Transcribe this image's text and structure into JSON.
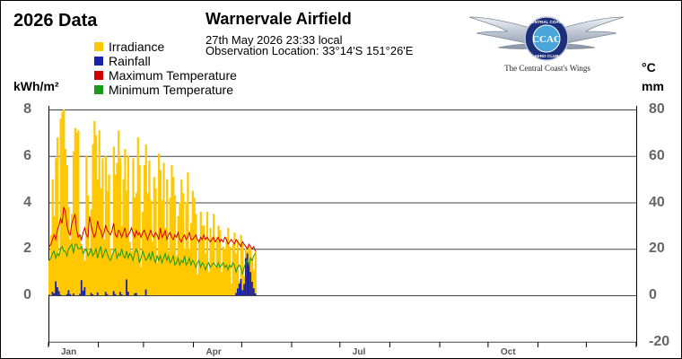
{
  "header": {
    "year_title": "2026 Data",
    "station": "Warnervale Airfield",
    "obs_time": "27th May 2026  23:33 local",
    "obs_location": "Observation Location: 33°14'S 151°26'E"
  },
  "logo": {
    "top_text": "CENTRAL COAST",
    "bottom_text": "AERO CLUB",
    "monogram": "CCAC",
    "caption": "The Central Coast's Wings"
  },
  "colors": {
    "irradiance": "#ffc800",
    "rainfall": "#1a22a8",
    "max_temp": "#d00000",
    "min_temp": "#1a9a1a",
    "grid": "#444444",
    "tick_text": "#666666"
  },
  "chart_data": {
    "type": "bar",
    "legend": [
      "Irradiance",
      "Rainfall",
      "Maximum Temperature",
      "Minimum Temperature"
    ],
    "left_axis": {
      "label": "kWh/m²",
      "range": [
        0,
        8
      ],
      "ticks": [
        "8",
        "6",
        "4",
        "2",
        "0"
      ]
    },
    "right_axis": {
      "label_temp": "°C",
      "label_rain": "mm",
      "range": [
        -20,
        80
      ],
      "ticks": [
        "80",
        "60",
        "40",
        "20",
        "0",
        "-20"
      ]
    },
    "x_axis": {
      "months": [
        "Jan",
        "Apr",
        "Jul",
        "Oct"
      ],
      "days_in_year": 365,
      "grid": true
    },
    "series": [
      {
        "name": "Irradiance",
        "unit": "kWh/m²",
        "values": [
          1.5,
          2.6,
          5.0,
          3.4,
          5.9,
          6.8,
          1.8,
          7.6,
          7.9,
          8.0,
          6.3,
          5.6,
          3.8,
          2.4,
          3.5,
          6.2,
          7.2,
          7.0,
          7.1,
          2.6,
          2.2,
          2.0,
          1.5,
          6.0,
          4.3,
          1.9,
          3.7,
          6.5,
          7.5,
          6.9,
          5.0,
          7.1,
          4.6,
          5.9,
          2.4,
          6.0,
          4.5,
          5.2,
          2.0,
          1.7,
          6.4,
          5.2,
          5.7,
          7.1,
          5.9,
          3.0,
          5.0,
          6.3,
          4.5,
          6.0,
          2.3,
          1.9,
          5.9,
          4.2,
          4.4,
          6.8,
          5.6,
          1.2,
          3.6,
          5.6,
          6.5,
          4.4,
          5.8,
          4.1,
          2.3,
          5.1,
          4.6,
          1.4,
          6.1,
          5.4,
          4.1,
          5.7,
          2.9,
          5.0,
          1.9,
          4.2,
          5.6,
          5.1,
          4.3,
          1.7,
          3.4,
          4.0,
          5.0,
          4.4,
          2.0,
          4.0,
          5.3,
          2.0,
          3.1,
          4.5,
          4.2,
          3.5,
          0.9,
          2.4,
          3.6,
          3.0,
          3.0,
          1.8,
          3.6,
          1.0,
          2.9,
          2.5,
          3.5,
          1.2,
          2.5,
          3.0,
          2.8,
          1.0,
          2.1,
          2.0,
          2.5,
          2.9,
          2.1,
          0.5,
          2.2,
          2.7,
          1.8,
          2.4,
          0.6,
          2.6,
          2.2,
          0.8,
          2.0,
          1.9,
          2.1,
          2.0,
          1.6,
          1.1,
          1.9
        ],
        "secondary": false
      },
      {
        "name": "Rainfall",
        "unit": "mm",
        "values": [
          0.2,
          0.0,
          1.5,
          0.8,
          6.0,
          3.5,
          1.8,
          0.3,
          0.0,
          0.0,
          0.0,
          0.5,
          2.2,
          0.5,
          0.0,
          0.8,
          0.0,
          0.0,
          0.0,
          0.6,
          6.5,
          2.0,
          3.5,
          0.0,
          0.0,
          0.0,
          1.0,
          0.4,
          0.0,
          0.0,
          1.2,
          0.0,
          0.0,
          0.0,
          0.0,
          1.5,
          0.5,
          0.0,
          0.0,
          0.0,
          1.8,
          0.5,
          0.0,
          0.0,
          1.5,
          0.4,
          0.0,
          0.0,
          6.8,
          1.5,
          0.0,
          0.0,
          0.0,
          0.8,
          1.0,
          0.0,
          0.0,
          0.0,
          0.0,
          0.0,
          2.5,
          0.0,
          0.0,
          0.0,
          0.0,
          0.0,
          0.0,
          0.0,
          0.0,
          0.0,
          0.0,
          0.0,
          0.0,
          0.0,
          0.0,
          0.0,
          0.0,
          0.0,
          0.0,
          0.0,
          0.0,
          0.0,
          0.0,
          0.0,
          0.0,
          0.0,
          0.0,
          0.0,
          0.0,
          0.0,
          0.0,
          0.0,
          0.0,
          0.0,
          0.0,
          0.0,
          0.0,
          0.0,
          0.0,
          0.0,
          0.0,
          0.0,
          0.0,
          0.0,
          0.0,
          0.0,
          0.0,
          0.0,
          0.0,
          0.0,
          0.0,
          0.0,
          0.0,
          0.0,
          0.0,
          0.0,
          1.0,
          3.0,
          5.0,
          7.0,
          2.2,
          4.8,
          16.0,
          18.0,
          14.0,
          10.0,
          5.8,
          3.0,
          0.8
        ],
        "secondary": true
      },
      {
        "name": "Maximum Temperature",
        "unit": "°C",
        "values": [
          21,
          22,
          24,
          26,
          24,
          28,
          30,
          33,
          31,
          38,
          36,
          30,
          27,
          26,
          31,
          33,
          35,
          28,
          25,
          26,
          24,
          27,
          29,
          26,
          25,
          34,
          30,
          27,
          25,
          27,
          32,
          29,
          28,
          25,
          27,
          30,
          28,
          27,
          26,
          28,
          31,
          26,
          25,
          28,
          27,
          25,
          27,
          29,
          25,
          26,
          27,
          29,
          27,
          25,
          28,
          26,
          27,
          25,
          27,
          28,
          26,
          24,
          26,
          28,
          26,
          25,
          27,
          26,
          24,
          29,
          25,
          26,
          28,
          24,
          26,
          27,
          25,
          24,
          26,
          25,
          27,
          24,
          23,
          25,
          26,
          24,
          25,
          27,
          24,
          24,
          25,
          26,
          24,
          23,
          25,
          24,
          26,
          24,
          25,
          24,
          23,
          24,
          25,
          23,
          24,
          25,
          23,
          24,
          23,
          25,
          24,
          22,
          23,
          24,
          23,
          22,
          24,
          23,
          22,
          21,
          23,
          22,
          21,
          20,
          22,
          21,
          20,
          21,
          19
        ],
        "secondary": true
      },
      {
        "name": "Minimum Temperature",
        "unit": "°C",
        "values": [
          15,
          16,
          18,
          19,
          16,
          18,
          17,
          20,
          21,
          19,
          19,
          17,
          20,
          21,
          22,
          18,
          22,
          22,
          20,
          20,
          21,
          18,
          19,
          20,
          17,
          18,
          20,
          17,
          18,
          20,
          16,
          19,
          21,
          16,
          18,
          20,
          18,
          16,
          15,
          17,
          19,
          20,
          16,
          18,
          17,
          20,
          17,
          16,
          19,
          16,
          18,
          17,
          15,
          18,
          20,
          18,
          14,
          16,
          19,
          17,
          15,
          16,
          18,
          15,
          19,
          16,
          14,
          17,
          15,
          17,
          14,
          16,
          18,
          15,
          17,
          14,
          15,
          17,
          13,
          14,
          16,
          13,
          15,
          14,
          17,
          13,
          14,
          16,
          13,
          15,
          14,
          12,
          14,
          15,
          12,
          14,
          13,
          11,
          13,
          14,
          12,
          13,
          14,
          13,
          12,
          14,
          12,
          13,
          14,
          12,
          13,
          11,
          13,
          12,
          14,
          13,
          10,
          12,
          13,
          12,
          9,
          12,
          14,
          15,
          13,
          16,
          15,
          17,
          18
        ],
        "secondary": true
      }
    ]
  }
}
